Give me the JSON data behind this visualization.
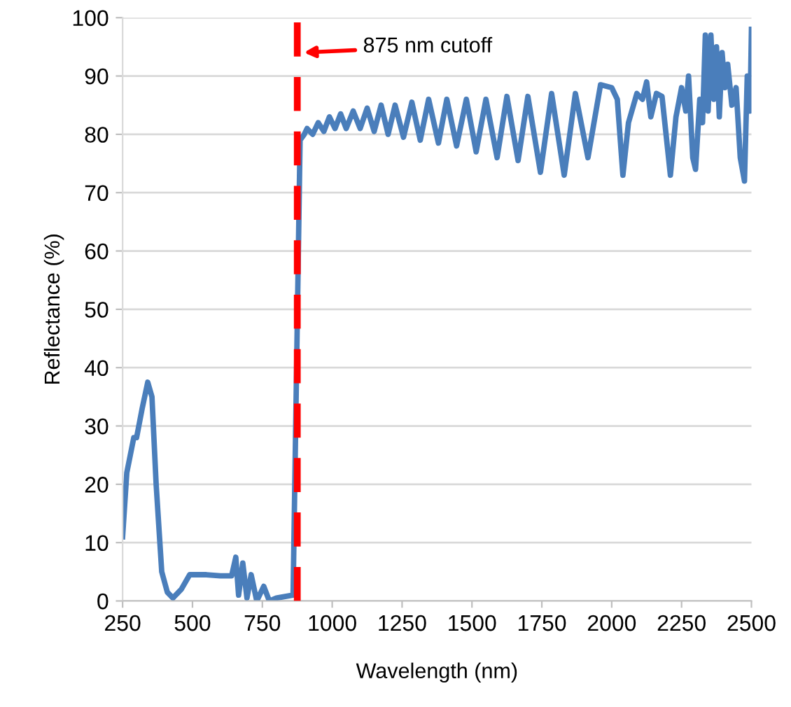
{
  "chart_data": {
    "type": "line",
    "xlabel": "Wavelength (nm)",
    "ylabel": "Reflectance (%)",
    "xlim": [
      250,
      2500
    ],
    "ylim": [
      0,
      100
    ],
    "xticks": [
      250,
      500,
      750,
      1000,
      1250,
      1500,
      1750,
      2000,
      2250,
      2500
    ],
    "yticks": [
      0,
      10,
      20,
      30,
      40,
      50,
      60,
      70,
      80,
      90,
      100
    ],
    "grid": "y",
    "marker": "none",
    "line_style": "solid",
    "ref_lines": [
      {
        "axis": "x",
        "value": 875,
        "color": "#ff0000",
        "line_style": "dashed"
      }
    ],
    "annotations": [
      {
        "text": "875 nm cutoff",
        "x": 885,
        "y": 94
      }
    ],
    "series": [
      {
        "color": "#4a7ebb",
        "x": [
          250,
          265,
          290,
          300,
          320,
          340,
          355,
          370,
          390,
          410,
          430,
          460,
          490,
          550,
          600,
          640,
          655,
          665,
          680,
          695,
          710,
          730,
          755,
          775,
          800,
          860,
          885,
          900,
          910,
          930,
          950,
          970,
          990,
          1010,
          1030,
          1050,
          1075,
          1100,
          1125,
          1150,
          1175,
          1200,
          1225,
          1255,
          1285,
          1315,
          1345,
          1380,
          1410,
          1445,
          1480,
          1515,
          1550,
          1590,
          1625,
          1665,
          1700,
          1745,
          1785,
          1830,
          1870,
          1915,
          1960,
          2000,
          2020,
          2040,
          2060,
          2090,
          2110,
          2125,
          2140,
          2160,
          2180,
          2210,
          2230,
          2250,
          2265,
          2275,
          2290,
          2300,
          2315,
          2325,
          2335,
          2345,
          2355,
          2365,
          2375,
          2385,
          2395,
          2405,
          2415,
          2430,
          2445,
          2460,
          2475,
          2485,
          2495,
          2500
        ],
        "values": [
          11,
          22,
          28,
          28,
          33,
          37.5,
          35,
          20,
          5,
          1.5,
          0.5,
          2,
          4.5,
          4.5,
          4.3,
          4.3,
          7.5,
          1,
          6.5,
          0.5,
          4.5,
          0,
          2.5,
          0,
          0.5,
          1,
          79,
          80,
          81,
          80,
          82,
          80.5,
          83,
          81,
          83.5,
          81,
          84,
          81,
          84.5,
          80.5,
          85,
          80,
          85,
          79.5,
          85.5,
          79,
          86,
          78.5,
          86,
          78,
          86,
          77,
          86,
          76,
          86.5,
          75.5,
          86.5,
          73.5,
          87,
          73,
          87,
          76,
          88.5,
          88,
          86,
          73,
          82,
          87,
          86,
          89,
          83,
          87,
          86.5,
          73,
          83,
          88,
          84,
          90,
          76,
          74,
          86,
          82,
          97,
          84,
          97,
          86,
          95,
          83,
          94,
          88,
          92,
          85,
          88,
          76,
          72,
          90,
          84,
          98
        ]
      }
    ]
  }
}
